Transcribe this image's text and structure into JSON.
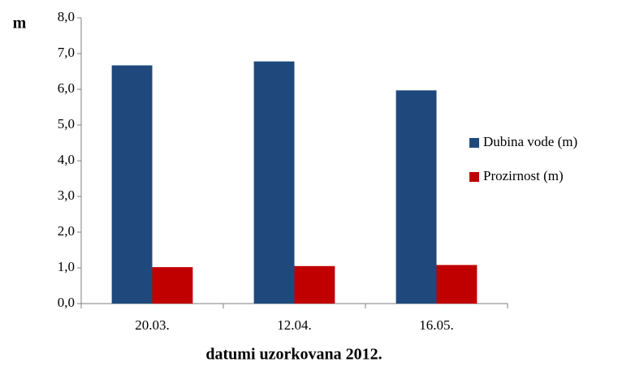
{
  "chart_data": {
    "type": "bar",
    "y_label": "m",
    "x_label": "datumi uzorkovana 2012.",
    "categories": [
      "20.03.",
      "12.04.",
      "16.05."
    ],
    "series": [
      {
        "name": "Dubina vode (m)",
        "color": "#1f497d",
        "values": [
          6.67,
          6.78,
          5.97
        ]
      },
      {
        "name": "Prozirnost (m)",
        "color": "#c00000",
        "values": [
          1.02,
          1.05,
          1.08
        ]
      }
    ],
    "ylim": [
      0,
      8
    ],
    "yticks": [
      {
        "value": 0,
        "label": "0,0"
      },
      {
        "value": 1,
        "label": "1,0"
      },
      {
        "value": 2,
        "label": "2,0"
      },
      {
        "value": 3,
        "label": "3,0"
      },
      {
        "value": 4,
        "label": "4,0"
      },
      {
        "value": 5,
        "label": "5,0"
      },
      {
        "value": 6,
        "label": "6,0"
      },
      {
        "value": 7,
        "label": "7,0"
      },
      {
        "value": 8,
        "label": "8,0"
      }
    ],
    "grid": false,
    "legend": "right"
  }
}
